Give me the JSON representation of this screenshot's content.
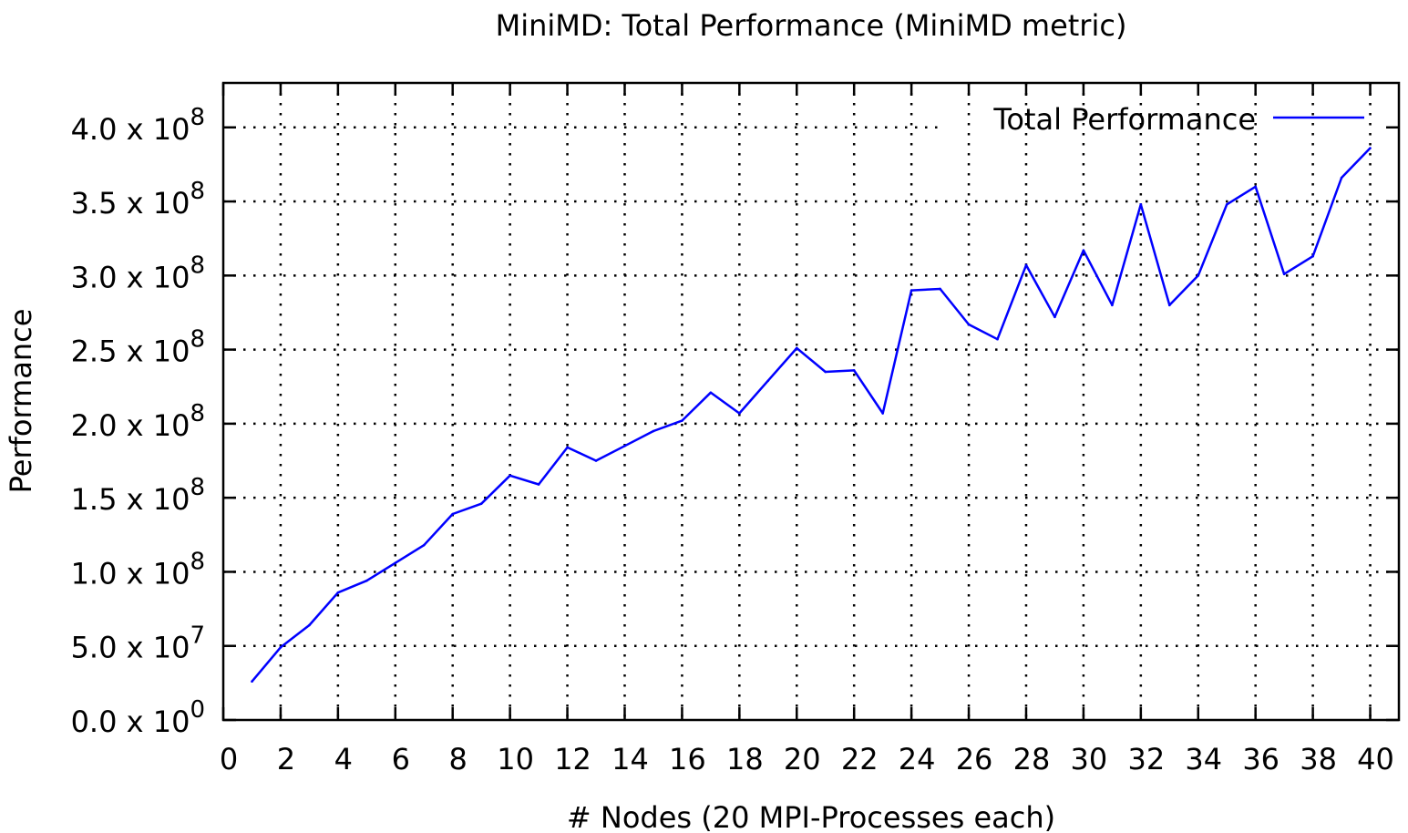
{
  "chart_data": {
    "type": "line",
    "title": "MiniMD: Total Performance (MiniMD metric)",
    "xlabel": "# Nodes (20 MPI-Processes each)",
    "ylabel": "Performance",
    "xlim": [
      0,
      41
    ],
    "ylim": [
      0,
      430000000
    ],
    "x_ticks": [
      0,
      2,
      4,
      6,
      8,
      10,
      12,
      14,
      16,
      18,
      20,
      22,
      24,
      26,
      28,
      30,
      32,
      34,
      36,
      38,
      40
    ],
    "y_ticks": [
      {
        "value": 0,
        "mantissa": "0.0 x 10",
        "exp": "0"
      },
      {
        "value": 50000000,
        "mantissa": "5.0 x 10",
        "exp": "7"
      },
      {
        "value": 100000000,
        "mantissa": "1.0 x 10",
        "exp": "8"
      },
      {
        "value": 150000000,
        "mantissa": "1.5 x 10",
        "exp": "8"
      },
      {
        "value": 200000000,
        "mantissa": "2.0 x 10",
        "exp": "8"
      },
      {
        "value": 250000000,
        "mantissa": "2.5 x 10",
        "exp": "8"
      },
      {
        "value": 300000000,
        "mantissa": "3.0 x 10",
        "exp": "8"
      },
      {
        "value": 350000000,
        "mantissa": "3.5 x 10",
        "exp": "8"
      },
      {
        "value": 400000000,
        "mantissa": "4.0 x 10",
        "exp": "8"
      }
    ],
    "grid": true,
    "legend_position": "top-right",
    "series": [
      {
        "name": "Total Performance",
        "color": "#0000ff",
        "x": [
          1,
          2,
          3,
          4,
          5,
          6,
          7,
          8,
          9,
          10,
          11,
          12,
          13,
          14,
          15,
          16,
          17,
          18,
          19,
          20,
          21,
          22,
          23,
          24,
          25,
          26,
          27,
          28,
          29,
          30,
          31,
          32,
          33,
          34,
          35,
          36,
          37,
          38,
          39,
          40
        ],
        "y": [
          26000000,
          49000000,
          64000000,
          86000000,
          94000000,
          106000000,
          118000000,
          139000000,
          146000000,
          165000000,
          159000000,
          184000000,
          175000000,
          185000000,
          195000000,
          202000000,
          221000000,
          207000000,
          229000000,
          251000000,
          235000000,
          236000000,
          207000000,
          290000000,
          291000000,
          267000000,
          257000000,
          307000000,
          272000000,
          317000000,
          280000000,
          348000000,
          280000000,
          300000000,
          348000000,
          360000000,
          301000000,
          313000000,
          366000000,
          386000000
        ]
      }
    ]
  }
}
